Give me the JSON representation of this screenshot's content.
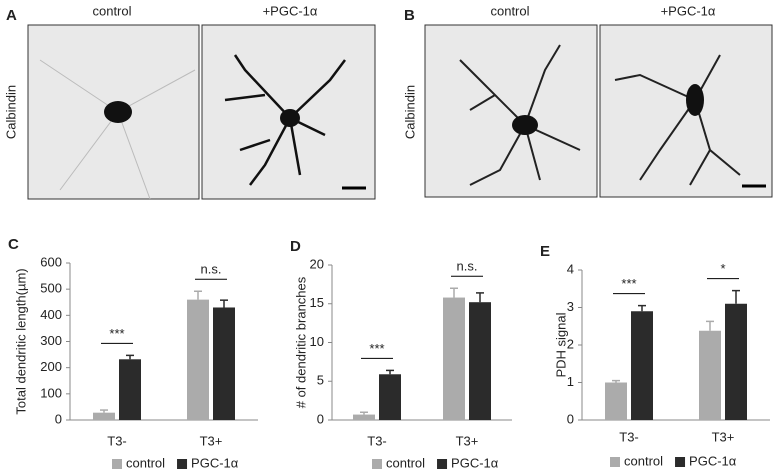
{
  "image_panels": [
    {
      "label": "A",
      "stain": "Calbindin",
      "conditions": [
        "control",
        "+PGC-1α"
      ]
    },
    {
      "label": "B",
      "stain": "Calbindin",
      "conditions": [
        "control",
        "+PGC-1α"
      ]
    }
  ],
  "chart_data": [
    {
      "type": "bar",
      "label": "C",
      "ylabel": "Total dendritic length(µm)",
      "categories": [
        "T3-",
        "T3+"
      ],
      "series": [
        {
          "name": "control",
          "color": "#ababab",
          "values": [
            28,
            460
          ],
          "errors": [
            10,
            32
          ]
        },
        {
          "name": "PGC-1α",
          "color": "#2b2b2b",
          "values": [
            232,
            430
          ],
          "errors": [
            15,
            28
          ]
        }
      ],
      "annotations": [
        "***",
        "n.s."
      ],
      "ylim": [
        0,
        600
      ],
      "yticks": [
        0,
        100,
        200,
        300,
        400,
        500,
        600
      ]
    },
    {
      "type": "bar",
      "label": "D",
      "ylabel": "# of dendritic branches",
      "categories": [
        "T3-",
        "T3+"
      ],
      "series": [
        {
          "name": "control",
          "color": "#ababab",
          "values": [
            0.7,
            15.8
          ],
          "errors": [
            0.3,
            1.2
          ]
        },
        {
          "name": "PGC-1α",
          "color": "#2b2b2b",
          "values": [
            5.9,
            15.2
          ],
          "errors": [
            0.5,
            1.2
          ]
        }
      ],
      "annotations": [
        "***",
        "n.s."
      ],
      "ylim": [
        0,
        20
      ],
      "yticks": [
        0,
        5,
        10,
        15,
        20
      ]
    },
    {
      "type": "bar",
      "label": "E",
      "ylabel": "PDH signal",
      "categories": [
        "T3-",
        "T3+"
      ],
      "series": [
        {
          "name": "control",
          "color": "#ababab",
          "values": [
            1.0,
            2.38
          ],
          "errors": [
            0.05,
            0.25
          ]
        },
        {
          "name": "PGC-1α",
          "color": "#2b2b2b",
          "values": [
            2.9,
            3.1
          ],
          "errors": [
            0.15,
            0.35
          ]
        }
      ],
      "annotations": [
        "***",
        "*"
      ],
      "ylim": [
        0,
        4
      ],
      "yticks": [
        0,
        1,
        2,
        3,
        4
      ]
    }
  ]
}
